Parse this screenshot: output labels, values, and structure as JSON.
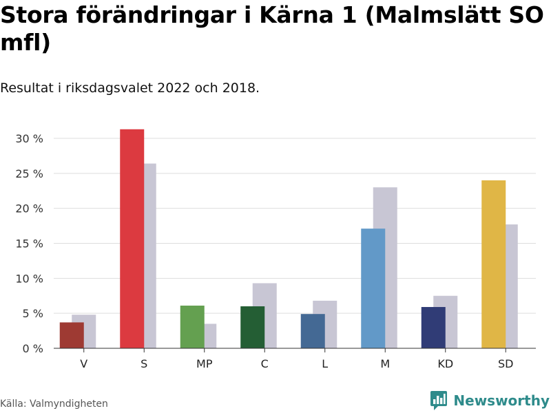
{
  "title": "Stora förändringar i Kärna 1 (Malmslätt SO mfl)",
  "subtitle": "Resultat i riksdagsvalet 2022 och 2018.",
  "source": "Källa: Valmyndigheten",
  "brand": {
    "name": "Newsworthy",
    "icon": "newsworthy-logo-icon",
    "color": "#2e8b8b"
  },
  "chart_data": {
    "type": "bar",
    "categories": [
      "V",
      "S",
      "MP",
      "C",
      "L",
      "M",
      "KD",
      "SD"
    ],
    "series": [
      {
        "values": [
          3.7,
          31.3,
          6.1,
          6.0,
          4.9,
          17.1,
          5.9,
          24.0
        ],
        "colors": [
          "#9e3a33",
          "#dc3a40",
          "#64a050",
          "#245e34",
          "#446994",
          "#6299c8",
          "#303c76",
          "#e0b646"
        ]
      },
      {
        "values": [
          4.8,
          26.4,
          3.5,
          9.3,
          6.8,
          23.0,
          7.5,
          17.7
        ],
        "color": "#c8c6d4"
      }
    ],
    "yticks": [
      "0 %",
      "5 %",
      "10 %",
      "15 %",
      "20 %",
      "25 %",
      "30 %"
    ],
    "ylim": [
      0,
      30
    ],
    "grid": true,
    "xlabel": "",
    "ylabel": ""
  }
}
